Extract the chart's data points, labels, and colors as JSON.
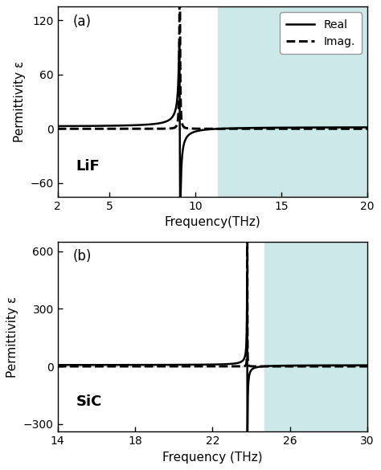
{
  "panel_a": {
    "label": "(a)",
    "material": "LiF",
    "freq_min": 2,
    "freq_max": 20,
    "ylim": [
      -75,
      135
    ],
    "yticks": [
      -60,
      0,
      60,
      120
    ],
    "xticks": [
      2,
      5,
      10,
      15,
      20
    ],
    "shaded_start": 11.3,
    "omega_TO": 9.1,
    "omega_LO": 11.3,
    "gamma": 0.05,
    "eps_inf": 1.9,
    "xlabel": "Frequency(THz)",
    "ylabel": "Permittivity ε",
    "shaded_color": "#cce8e8"
  },
  "panel_b": {
    "label": "(b)",
    "material": "SiC",
    "freq_min": 14,
    "freq_max": 30,
    "ylim": [
      -340,
      650
    ],
    "yticks": [
      -300,
      0,
      300,
      600
    ],
    "xticks": [
      14,
      18,
      22,
      26,
      30
    ],
    "shaded_start": 24.7,
    "omega_TO": 23.8,
    "omega_LO": 24.6,
    "gamma": 0.012,
    "eps_inf": 6.7,
    "xlabel": "Frequency (THz)",
    "ylabel": "Permittivity ε",
    "shaded_color": "#cce8e8"
  },
  "line_color": "#000000",
  "line_width": 1.8,
  "legend_loc": "upper right",
  "bg_color": "#ffffff",
  "dotted_color": "#aaaaaa"
}
